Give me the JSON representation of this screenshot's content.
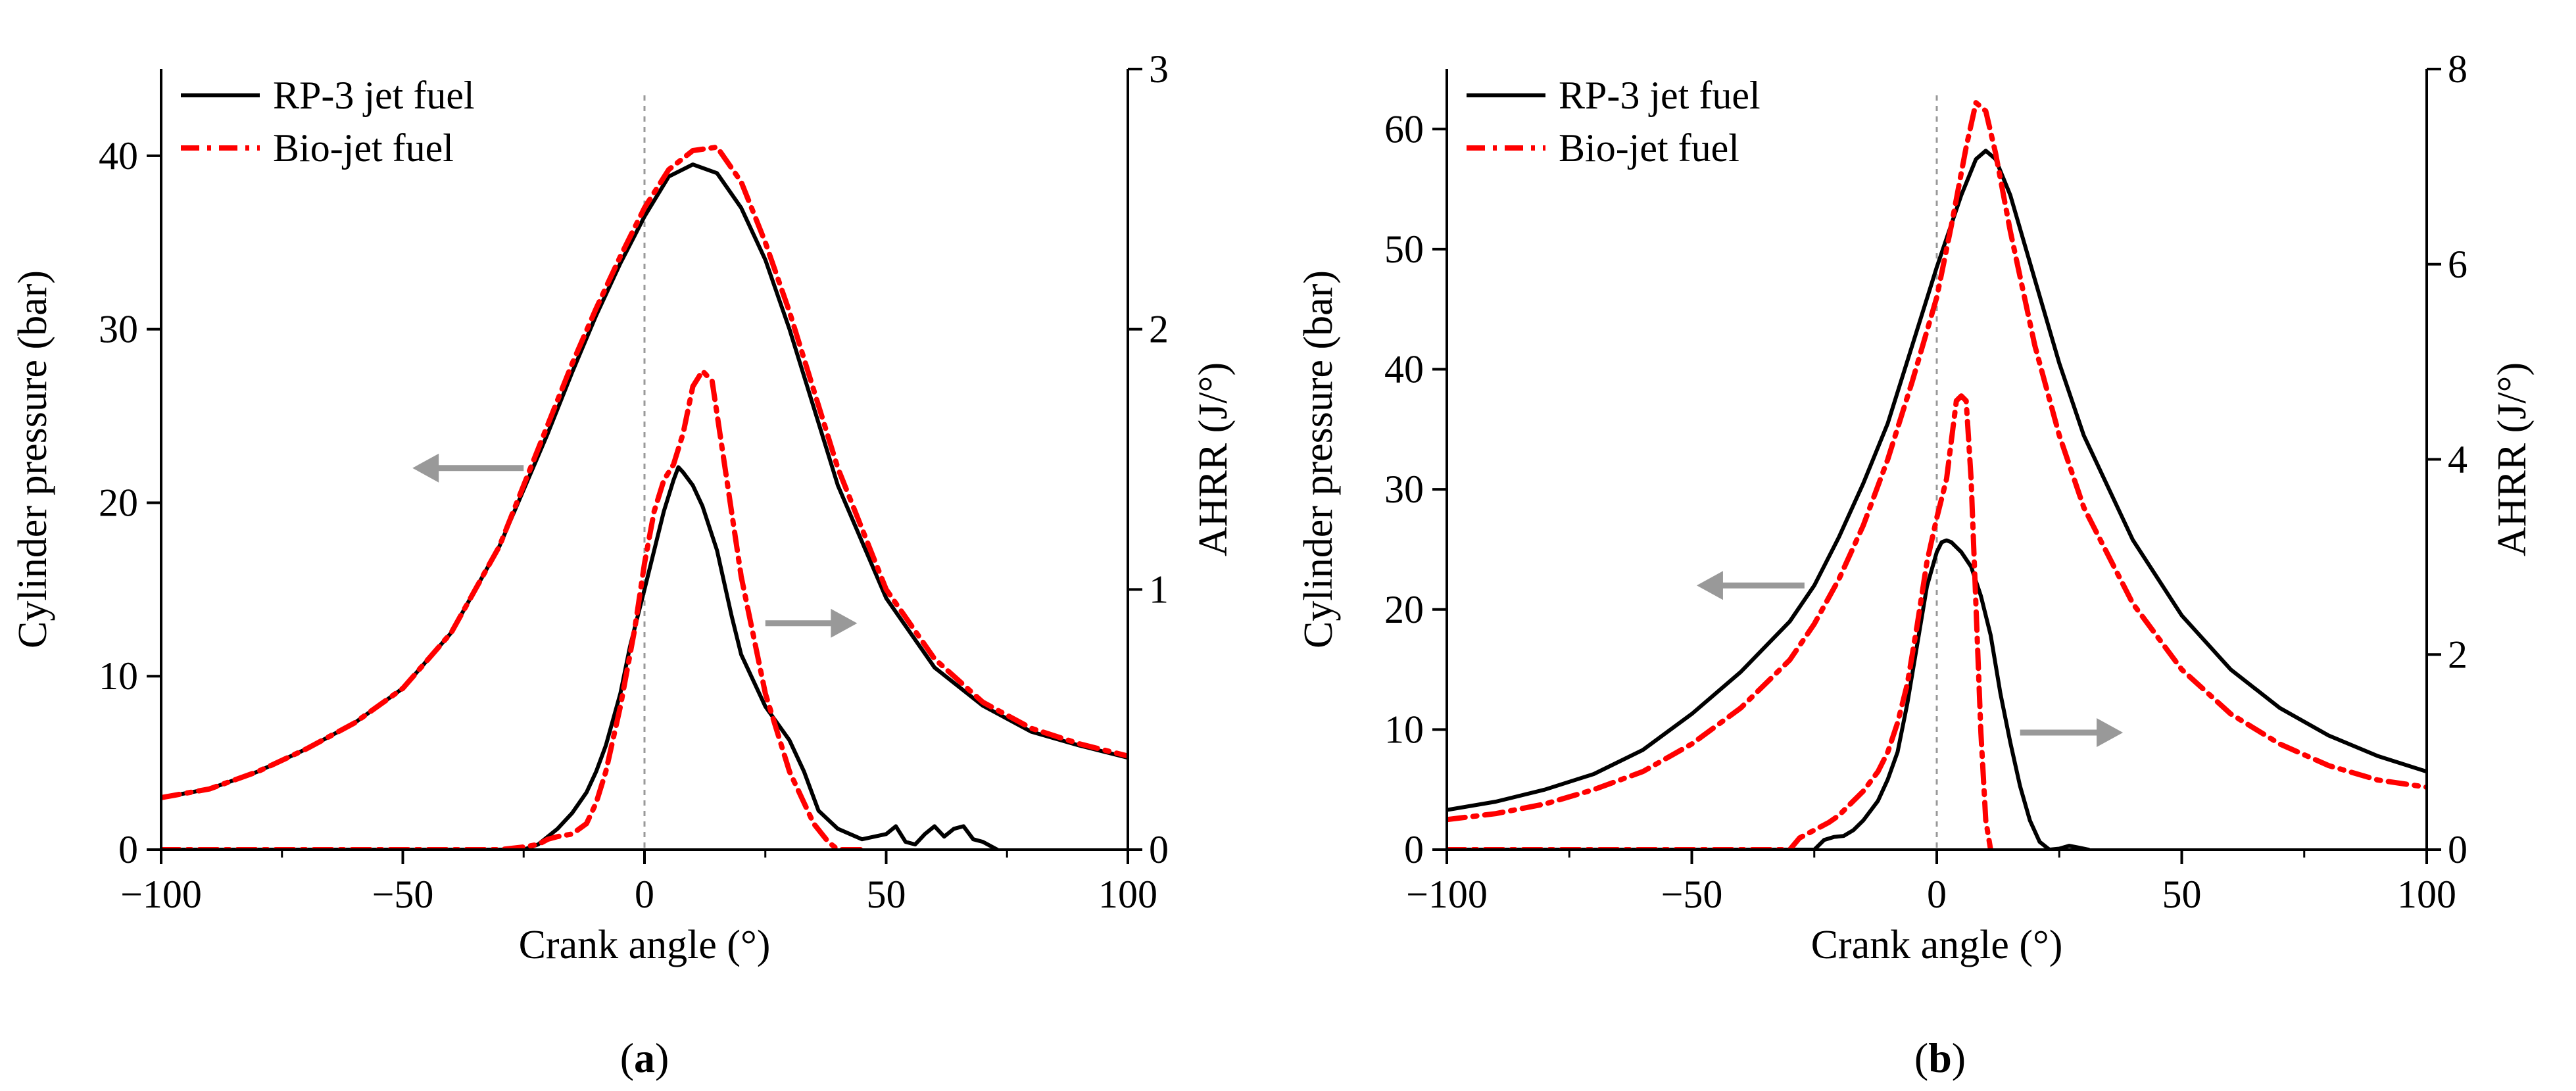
{
  "chart_data": [
    {
      "type": "line",
      "panel_label": "(a)",
      "panel_letter": "a",
      "xlabel": "Crank angle (°)",
      "ylabel_left": "Cylinder pressure (bar)",
      "ylabel_right": "AHRR (J/°)",
      "xlim": [
        -100,
        100
      ],
      "ylim_left": [
        0,
        45
      ],
      "ylim_right": [
        0,
        3
      ],
      "x_ticks": [
        -100,
        -50,
        0,
        50,
        100
      ],
      "x_tick_labels": [
        "−100",
        "−50",
        "0",
        "50",
        "100"
      ],
      "y_left_ticks": [
        0,
        10,
        20,
        30,
        40
      ],
      "y_right_ticks": [
        0,
        1,
        2,
        3
      ],
      "legend": [
        "RP-3 jet fuel",
        "Bio-jet fuel"
      ],
      "legend_position": "top-left",
      "tdc_line_x": 0,
      "arrows": [
        {
          "name": "left-arrow",
          "direction": "left",
          "x_from": -25,
          "x_to": -48,
          "y": 22,
          "axis": "left"
        },
        {
          "name": "right-arrow",
          "direction": "right",
          "x_from": 25,
          "x_to": 44,
          "y": 0.87,
          "axis": "right"
        }
      ],
      "series": [
        {
          "name": "RP-3 jet fuel",
          "axis": "left",
          "color": "#000000",
          "style": "solid",
          "x": [
            -100,
            -90,
            -80,
            -70,
            -60,
            -50,
            -40,
            -30,
            -20,
            -15,
            -10,
            -5,
            0,
            5,
            10,
            15,
            20,
            25,
            30,
            35,
            40,
            50,
            60,
            70,
            80,
            90,
            100
          ],
          "y": [
            3.0,
            3.5,
            4.5,
            5.8,
            7.3,
            9.3,
            12.5,
            17.5,
            24,
            27.5,
            30.8,
            33.8,
            36.5,
            38.8,
            39.5,
            39,
            37,
            34,
            30,
            25.5,
            21,
            14.5,
            10.5,
            8.3,
            6.8,
            6.0,
            5.3
          ]
        },
        {
          "name": "Bio-jet fuel",
          "axis": "left",
          "color": "#ff0000",
          "style": "dashdot",
          "x": [
            -100,
            -90,
            -80,
            -70,
            -60,
            -50,
            -40,
            -30,
            -20,
            -15,
            -10,
            -5,
            0,
            5,
            10,
            15,
            20,
            25,
            30,
            35,
            40,
            50,
            60,
            70,
            80,
            90,
            100
          ],
          "y": [
            3.0,
            3.5,
            4.5,
            5.8,
            7.3,
            9.3,
            12.5,
            17.5,
            24.5,
            28,
            31.2,
            34.2,
            37,
            39.2,
            40.3,
            40.5,
            38.5,
            35,
            31,
            26.5,
            22,
            15,
            11,
            8.5,
            7.0,
            6.1,
            5.4
          ]
        },
        {
          "name": "RP-3 jet fuel",
          "axis": "right",
          "color": "#000000",
          "style": "solid",
          "x": [
            -100,
            -30,
            -25,
            -22,
            -20,
            -18,
            -15,
            -12,
            -10,
            -8,
            -5,
            -3,
            0,
            2,
            4,
            6,
            7,
            8,
            10,
            12,
            15,
            18,
            20,
            25,
            30,
            33,
            36,
            40,
            45,
            50,
            52,
            54,
            56,
            58,
            60,
            62,
            64,
            66,
            68,
            70,
            73
          ],
          "y": [
            0,
            0,
            0,
            0.02,
            0.05,
            0.08,
            0.14,
            0.22,
            0.3,
            0.4,
            0.6,
            0.78,
            1.0,
            1.15,
            1.3,
            1.42,
            1.47,
            1.45,
            1.4,
            1.32,
            1.15,
            0.9,
            0.75,
            0.55,
            0.42,
            0.3,
            0.15,
            0.08,
            0.04,
            0.06,
            0.09,
            0.03,
            0.02,
            0.06,
            0.09,
            0.05,
            0.08,
            0.09,
            0.04,
            0.03,
            0
          ]
        },
        {
          "name": "Bio-jet fuel",
          "axis": "right",
          "color": "#ff0000",
          "style": "dashdot",
          "x": [
            -100,
            -30,
            -25,
            -22,
            -20,
            -18,
            -15,
            -12,
            -10,
            -8,
            -5,
            -2,
            0,
            2,
            4,
            6,
            8,
            10,
            12,
            14,
            16,
            18,
            20,
            25,
            30,
            35,
            38,
            40,
            45
          ],
          "y": [
            0,
            0,
            0.01,
            0.02,
            0.04,
            0.05,
            0.06,
            0.1,
            0.18,
            0.3,
            0.55,
            0.85,
            1.1,
            1.3,
            1.42,
            1.48,
            1.6,
            1.78,
            1.84,
            1.8,
            1.55,
            1.3,
            1.05,
            0.6,
            0.3,
            0.1,
            0.03,
            0,
            0
          ]
        }
      ]
    },
    {
      "type": "line",
      "panel_label": "(b)",
      "panel_letter": "b",
      "xlabel": "Crank angle (°)",
      "ylabel_left": "Cylinder pressure (bar)",
      "ylabel_right": "AHRR (J/°)",
      "xlim": [
        -100,
        100
      ],
      "ylim_left": [
        0,
        65
      ],
      "ylim_right": [
        0,
        8
      ],
      "x_ticks": [
        -100,
        -50,
        0,
        50,
        100
      ],
      "x_tick_labels": [
        "−100",
        "−50",
        "0",
        "50",
        "100"
      ],
      "y_left_ticks": [
        0,
        10,
        20,
        30,
        40,
        50,
        60
      ],
      "y_right_ticks": [
        0,
        2,
        4,
        6,
        8
      ],
      "legend": [
        "RP-3 jet fuel",
        "Bio-jet fuel"
      ],
      "legend_position": "top-left",
      "tdc_line_x": 0,
      "arrows": [
        {
          "name": "left-arrow",
          "direction": "left",
          "x_from": -27,
          "x_to": -49,
          "y": 22,
          "axis": "left"
        },
        {
          "name": "right-arrow",
          "direction": "right",
          "x_from": 17,
          "x_to": 38,
          "y": 1.2,
          "axis": "right"
        }
      ],
      "series": [
        {
          "name": "RP-3 jet fuel",
          "axis": "left",
          "color": "#000000",
          "style": "solid",
          "x": [
            -100,
            -90,
            -80,
            -70,
            -60,
            -50,
            -40,
            -30,
            -25,
            -20,
            -15,
            -10,
            -5,
            0,
            5,
            8,
            10,
            12,
            15,
            20,
            25,
            30,
            40,
            50,
            60,
            70,
            80,
            90,
            100
          ],
          "y": [
            3.3,
            4.0,
            5.0,
            6.3,
            8.3,
            11.3,
            14.8,
            19,
            22,
            26,
            30.5,
            35.5,
            42,
            48.5,
            54.5,
            57.5,
            58.2,
            57.5,
            54.5,
            47.5,
            40.5,
            34.5,
            25.8,
            19.5,
            15,
            11.8,
            9.5,
            7.8,
            6.5
          ]
        },
        {
          "name": "Bio-jet fuel",
          "axis": "left",
          "color": "#ff0000",
          "style": "dashdot",
          "x": [
            -100,
            -90,
            -80,
            -70,
            -60,
            -50,
            -40,
            -30,
            -25,
            -20,
            -15,
            -10,
            -5,
            0,
            3,
            6,
            8,
            10,
            12,
            15,
            20,
            25,
            30,
            40,
            50,
            60,
            70,
            80,
            90,
            100
          ],
          "y": [
            2.5,
            3.0,
            3.8,
            5.0,
            6.5,
            8.8,
            11.8,
            15.8,
            18.8,
            22.5,
            27,
            32.5,
            39,
            46,
            52,
            58.5,
            62.2,
            61.5,
            58,
            51.5,
            42,
            34.5,
            28.5,
            20.5,
            15,
            11.3,
            8.8,
            7.0,
            5.8,
            5.2
          ]
        },
        {
          "name": "RP-3 jet fuel",
          "axis": "right",
          "color": "#000000",
          "style": "solid",
          "x": [
            -100,
            -25,
            -23,
            -21,
            -19,
            -17,
            -15,
            -12,
            -10,
            -8,
            -6,
            -4,
            -2,
            0,
            1,
            2,
            3,
            5,
            7,
            9,
            11,
            13,
            15,
            17,
            19,
            21,
            23,
            25,
            27,
            29,
            31
          ],
          "y": [
            0,
            0,
            0.1,
            0.13,
            0.14,
            0.2,
            0.3,
            0.5,
            0.72,
            1.0,
            1.5,
            2.1,
            2.7,
            3.05,
            3.15,
            3.17,
            3.15,
            3.05,
            2.9,
            2.6,
            2.2,
            1.6,
            1.1,
            0.65,
            0.3,
            0.08,
            0,
            0.01,
            0.04,
            0.02,
            0
          ]
        },
        {
          "name": "Bio-jet fuel",
          "axis": "right",
          "color": "#ff0000",
          "style": "dashdot",
          "x": [
            -100,
            -30,
            -28,
            -25,
            -22,
            -20,
            -18,
            -15,
            -12,
            -10,
            -8,
            -6,
            -4,
            -2,
            0,
            2,
            4,
            5,
            6,
            7,
            8,
            9,
            10,
            11
          ],
          "y": [
            0,
            0,
            0.12,
            0.2,
            0.28,
            0.35,
            0.45,
            0.6,
            0.8,
            1.0,
            1.3,
            1.7,
            2.3,
            2.95,
            3.4,
            3.8,
            4.6,
            4.65,
            4.6,
            3.8,
            2.5,
            1.2,
            0.3,
            0
          ]
        }
      ]
    }
  ]
}
